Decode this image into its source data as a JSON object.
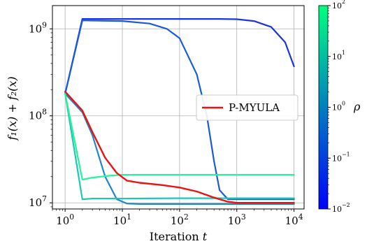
{
  "chart_data": {
    "type": "line",
    "title": "",
    "xlabel_text": "Iteration",
    "xlabel_var": "t",
    "ylabel": "f₁(x) + f₂(x)",
    "xscale": "log",
    "yscale": "log",
    "xlim": [
      0.6,
      15000
    ],
    "ylim": [
      8500000,
      1850000000
    ],
    "x_ticks": [
      {
        "value": 1,
        "base": "10",
        "exp": "0"
      },
      {
        "value": 10,
        "base": "10",
        "exp": "1"
      },
      {
        "value": 100,
        "base": "10",
        "exp": "2"
      },
      {
        "value": 1000,
        "base": "10",
        "exp": "3"
      },
      {
        "value": 10000,
        "base": "10",
        "exp": "4"
      }
    ],
    "y_ticks": [
      {
        "value": 10000000,
        "base": "10",
        "exp": "7"
      },
      {
        "value": 100000000,
        "base": "10",
        "exp": "8"
      },
      {
        "value": 1000000000,
        "base": "10",
        "exp": "9"
      }
    ],
    "grid": true,
    "legend_position": "center-right",
    "colorbar": {
      "label": "ρ",
      "scale": "log",
      "range": [
        0.01,
        100
      ],
      "colors": [
        "#0000ff",
        "#00ff80"
      ],
      "ticks": [
        {
          "value": 0.01,
          "base": "10",
          "exp": "−2"
        },
        {
          "value": 0.1,
          "base": "10",
          "exp": "−1"
        },
        {
          "value": 1,
          "base": "10",
          "exp": "0"
        },
        {
          "value": 10,
          "base": "10",
          "exp": "1"
        },
        {
          "value": 100,
          "base": "10",
          "exp": "2"
        }
      ]
    },
    "series": [
      {
        "color": "#1a33e6",
        "points": [
          [
            1,
            180000000
          ],
          [
            2,
            1300000000
          ],
          [
            10,
            1300000000
          ],
          [
            100,
            1300000000
          ],
          [
            500,
            1300000000
          ],
          [
            1000,
            1290000000
          ],
          [
            2000,
            1230000000
          ],
          [
            4000,
            1050000000
          ],
          [
            7000,
            700000000
          ],
          [
            10000,
            370000000
          ]
        ]
      },
      {
        "color": "#1c5bd8",
        "points": [
          [
            1,
            180000000
          ],
          [
            2,
            1250000000
          ],
          [
            10,
            1230000000
          ],
          [
            30,
            1150000000
          ],
          [
            60,
            1000000000
          ],
          [
            100,
            780000000
          ],
          [
            200,
            300000000
          ],
          [
            300,
            100000000
          ],
          [
            400,
            30000000
          ],
          [
            500,
            14000000
          ],
          [
            700,
            11000000
          ],
          [
            1000,
            11000000
          ],
          [
            10000,
            11000000
          ]
        ]
      },
      {
        "color": "#1f86c8",
        "points": [
          [
            1,
            180000000
          ],
          [
            2,
            110000000
          ],
          [
            3,
            60000000
          ],
          [
            5,
            20000000
          ],
          [
            8,
            11000000
          ],
          [
            12,
            9800000
          ],
          [
            20,
            9700000
          ],
          [
            100,
            9700000
          ],
          [
            1000,
            9700000
          ],
          [
            10000,
            9700000
          ]
        ]
      },
      {
        "color": "#1ec8b4",
        "points": [
          [
            1,
            180000000
          ],
          [
            2,
            11000000
          ],
          [
            3,
            11200000
          ],
          [
            10,
            11200000
          ],
          [
            100,
            11300000
          ],
          [
            1000,
            11300000
          ],
          [
            10000,
            11300000
          ]
        ]
      },
      {
        "color": "#22f59a",
        "points": [
          [
            1,
            180000000
          ],
          [
            2,
            18500000
          ],
          [
            3,
            19500000
          ],
          [
            6,
            20500000
          ],
          [
            10,
            21000000
          ],
          [
            100,
            21000000
          ],
          [
            1000,
            21000000
          ],
          [
            10000,
            21000000
          ]
        ]
      },
      {
        "name": "P-MYULA",
        "color": "#ee1111",
        "points": [
          [
            1,
            190000000
          ],
          [
            2,
            115000000
          ],
          [
            3,
            65000000
          ],
          [
            5,
            33000000
          ],
          [
            8,
            22000000
          ],
          [
            12,
            18000000
          ],
          [
            20,
            17000000
          ],
          [
            50,
            16000000
          ],
          [
            100,
            15000000
          ],
          [
            200,
            13500000
          ],
          [
            400,
            11500000
          ],
          [
            700,
            10300000
          ],
          [
            1000,
            10000000
          ],
          [
            10000,
            10000000
          ]
        ]
      }
    ]
  }
}
